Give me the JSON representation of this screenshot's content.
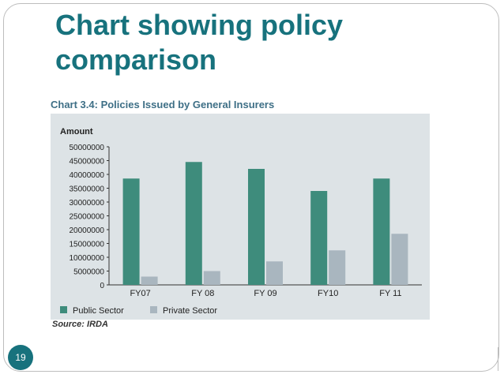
{
  "slide": {
    "title_line1": "Chart showing policy",
    "title_line2": "comparison",
    "page_number": "19",
    "colors": {
      "title": "#17727d",
      "badge": "#17727d"
    }
  },
  "chart_data": {
    "type": "bar",
    "title": "Chart 3.4: Policies Issued by General Insurers",
    "ylabel": "Amount",
    "xlabel": "",
    "categories": [
      "FY07",
      "FY 08",
      "FY 09",
      "FY10",
      "FY 11"
    ],
    "series": [
      {
        "name": "Public Sector",
        "color": "#3e8c7c",
        "values": [
          38500000,
          44500000,
          42000000,
          34000000,
          38500000
        ]
      },
      {
        "name": "Private Sector",
        "color": "#a9b6bf",
        "values": [
          3000000,
          5000000,
          8500000,
          12500000,
          18500000
        ]
      }
    ],
    "ylim": [
      0,
      50000000
    ],
    "yticks": [
      "50000000",
      "45000000",
      "40000000",
      "35000000",
      "30000000",
      "25000000",
      "20000000",
      "15000000",
      "10000000",
      "5000000",
      "0"
    ],
    "grid": false,
    "legend_position": "bottom-left",
    "source": "Source: IRDA"
  }
}
